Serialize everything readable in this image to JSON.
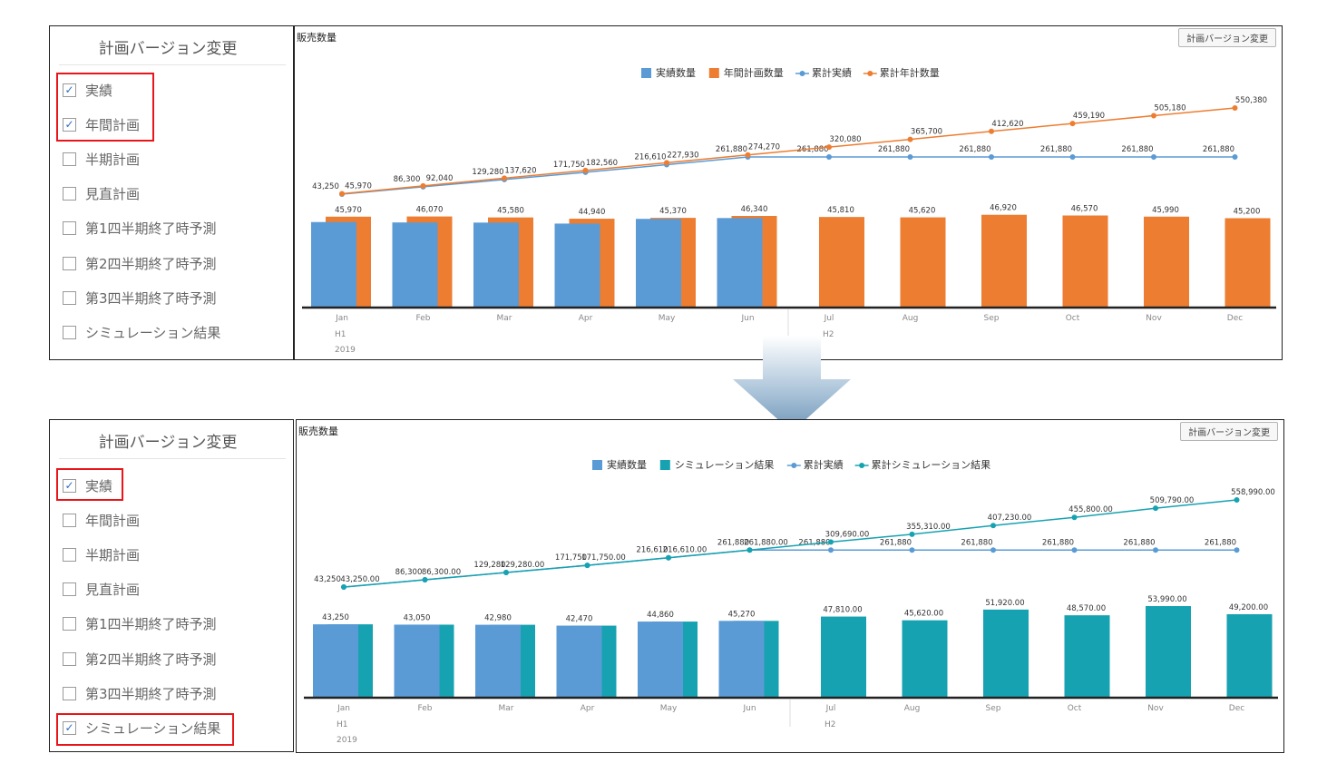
{
  "panel_title": "計画バージョン変更",
  "chart_title": "販売数量",
  "change_button": "計画バージョン変更",
  "top": {
    "options": [
      {
        "label": "実績",
        "checked": true
      },
      {
        "label": "年間計画",
        "checked": true
      },
      {
        "label": "半期計画",
        "checked": false
      },
      {
        "label": "見直計画",
        "checked": false
      },
      {
        "label": "第1四半期終了時予測",
        "checked": false
      },
      {
        "label": "第2四半期終了時予測",
        "checked": false
      },
      {
        "label": "第3四半期終了時予測",
        "checked": false
      },
      {
        "label": "シミュレーション結果",
        "checked": false
      }
    ]
  },
  "bottom": {
    "options": [
      {
        "label": "実績",
        "checked": true
      },
      {
        "label": "年間計画",
        "checked": false
      },
      {
        "label": "半期計画",
        "checked": false
      },
      {
        "label": "見直計画",
        "checked": false
      },
      {
        "label": "第1四半期終了時予測",
        "checked": false
      },
      {
        "label": "第2四半期終了時予測",
        "checked": false
      },
      {
        "label": "第3四半期終了時予測",
        "checked": false
      },
      {
        "label": "シミュレーション結果",
        "checked": true
      }
    ]
  },
  "colors": {
    "actual": "#5b9bd5",
    "plan": "#ed7d31",
    "sim": "#17a2b1",
    "cum_actual": "#5b9bd5"
  },
  "chart_data": [
    {
      "type": "bar",
      "title": "販売数量",
      "categories": [
        "Jan",
        "Feb",
        "Mar",
        "Apr",
        "May",
        "Jun",
        "Jul",
        "Aug",
        "Sep",
        "Oct",
        "Nov",
        "Dec"
      ],
      "half_labels": [
        "H1",
        "H2"
      ],
      "year_label": "2019",
      "legend": [
        "実績数量",
        "年間計画数量",
        "累計実績",
        "累計年計数量"
      ],
      "legend_position": "top",
      "series": [
        {
          "name": "実績数量",
          "kind": "bar",
          "color": "#5b9bd5",
          "values": [
            43250,
            43050,
            42980,
            42470,
            44860,
            45270,
            null,
            null,
            null,
            null,
            null,
            null
          ]
        },
        {
          "name": "年間計画数量",
          "kind": "bar",
          "color": "#ed7d31",
          "values": [
            45970,
            46070,
            45580,
            44940,
            45370,
            46340,
            45810,
            45620,
            46920,
            46570,
            45990,
            45200
          ],
          "labels": [
            "45,970",
            "46,070",
            "45,580",
            "44,940",
            "45,370",
            "46,340",
            "45,810",
            "45,620",
            "46,920",
            "46,570",
            "45,990",
            "45,200"
          ]
        },
        {
          "name": "累計実績",
          "kind": "line",
          "color": "#5b9bd5",
          "values": [
            43250,
            86300,
            129280,
            171750,
            216610,
            261880,
            261880,
            261880,
            261880,
            261880,
            261880,
            261880
          ],
          "labels": [
            "43,250",
            "86,300",
            "129,280",
            "171,750",
            "216,610",
            "261,880",
            "261,880",
            "261,880",
            "261,880",
            "261,880",
            "261,880",
            "261,880"
          ]
        },
        {
          "name": "累計年計数量",
          "kind": "line",
          "color": "#ed7d31",
          "values": [
            45970,
            92040,
            137620,
            182560,
            227930,
            274270,
            320080,
            365700,
            412620,
            459190,
            505180,
            550380
          ],
          "labels": [
            "45,970",
            "92,040",
            "137,620",
            "182,560",
            "227,930",
            "274,270",
            "320,080",
            "365,700",
            "412,620",
            "459,190",
            "505,180",
            "550,380"
          ]
        }
      ]
    },
    {
      "type": "bar",
      "title": "販売数量",
      "categories": [
        "Jan",
        "Feb",
        "Mar",
        "Apr",
        "May",
        "Jun",
        "Jul",
        "Aug",
        "Sep",
        "Oct",
        "Nov",
        "Dec"
      ],
      "half_labels": [
        "H1",
        "H2"
      ],
      "year_label": "2019",
      "legend": [
        "実績数量",
        "シミュレーション結果",
        "累計実績",
        "累計シミュレーション結果"
      ],
      "legend_position": "top",
      "series": [
        {
          "name": "実績数量",
          "kind": "bar",
          "color": "#5b9bd5",
          "values": [
            43250,
            43050,
            42980,
            42470,
            44860,
            45270,
            null,
            null,
            null,
            null,
            null,
            null
          ],
          "labels": [
            "43,250",
            "43,050",
            "42,980",
            "42,470",
            "44,860",
            "45,270"
          ]
        },
        {
          "name": "シミュレーション結果",
          "kind": "bar",
          "color": "#17a2b1",
          "values": [
            43250,
            43050,
            42980,
            42470,
            44860,
            45270,
            47810,
            45620,
            51920,
            48570,
            53990,
            49200
          ],
          "labels": [
            "",
            "",
            "",
            "",
            "",
            "",
            "47,810.00",
            "45,620.00",
            "51,920.00",
            "48,570.00",
            "53,990.00",
            "49,200.00"
          ]
        },
        {
          "name": "累計実績",
          "kind": "line",
          "color": "#5b9bd5",
          "values": [
            43250,
            86300,
            129280,
            171750,
            216610,
            261880,
            261880,
            261880,
            261880,
            261880,
            261880,
            261880
          ],
          "labels": [
            "43,250",
            "86,300",
            "129,280",
            "171,750",
            "216,610",
            "261,880",
            "261,880",
            "261,880",
            "261,880",
            "261,880",
            "261,880",
            "261,880"
          ]
        },
        {
          "name": "累計シミュレーション結果",
          "kind": "line",
          "color": "#17a2b1",
          "values": [
            43250,
            86300,
            129280,
            171750,
            216610,
            261880,
            309690,
            355310,
            407230,
            455800,
            509790,
            558990
          ],
          "labels": [
            "43,250.00",
            "86,300.00",
            "129,280.00",
            "171,750.00",
            "216,610.00",
            "261,880.00",
            "309,690.00",
            "355,310.00",
            "407,230.00",
            "455,800.00",
            "509,790.00",
            "558,990.00"
          ]
        }
      ]
    }
  ]
}
